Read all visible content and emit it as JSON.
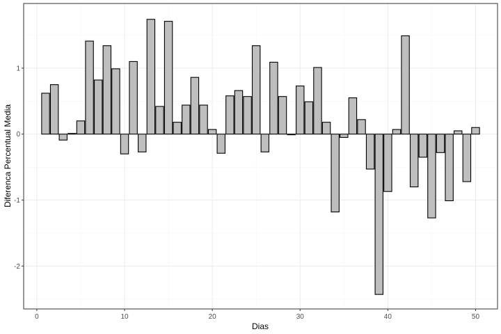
{
  "chart_data": {
    "type": "bar",
    "title": "",
    "xlabel": "Dias",
    "ylabel": "Diferenca Percentual Media",
    "xlim": [
      -1.5,
      52.5
    ],
    "ylim": [
      -2.65,
      1.98
    ],
    "x_ticks": [
      0,
      10,
      20,
      30,
      40,
      50
    ],
    "y_ticks": [
      -2,
      -1,
      0,
      1
    ],
    "grid": true,
    "legend": "none",
    "colors": {
      "bar_fill": "#bebebe",
      "bar_stroke": "#000000",
      "panel_border": "#333333",
      "grid_major": "#ebebeb",
      "grid_minor": "#f5f5f5"
    },
    "x": [
      1,
      2,
      3,
      4,
      5,
      6,
      7,
      8,
      9,
      10,
      11,
      12,
      13,
      14,
      15,
      16,
      17,
      18,
      19,
      20,
      21,
      22,
      23,
      24,
      25,
      26,
      27,
      28,
      29,
      30,
      31,
      32,
      33,
      34,
      35,
      36,
      37,
      38,
      39,
      40,
      41,
      42,
      43,
      44,
      45,
      46,
      47,
      48,
      49,
      50
    ],
    "values": [
      0.62,
      0.75,
      -0.09,
      0.01,
      0.2,
      1.41,
      0.82,
      1.34,
      0.99,
      -0.3,
      1.1,
      -0.27,
      1.74,
      0.42,
      1.71,
      0.18,
      0.44,
      0.86,
      0.44,
      0.07,
      -0.29,
      0.58,
      0.66,
      0.57,
      1.34,
      -0.27,
      1.09,
      0.57,
      -0.01,
      0.73,
      0.49,
      1.01,
      0.18,
      -1.18,
      -0.05,
      0.55,
      0.22,
      -0.53,
      -2.43,
      -0.87,
      0.07,
      1.49,
      -0.8,
      -0.35,
      -1.27,
      -0.28,
      -1.01,
      0.05,
      -0.72,
      0.1
    ]
  }
}
